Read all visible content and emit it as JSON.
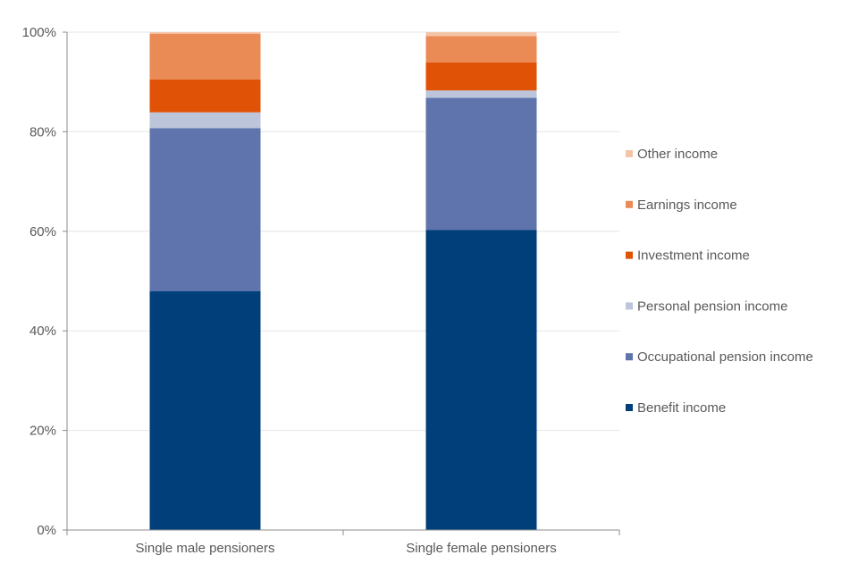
{
  "chart_data": {
    "type": "bar",
    "stacked": true,
    "categories": [
      "Single male pensioners",
      "Single female pensioners"
    ],
    "series": [
      {
        "name": "Benefit income",
        "color": "#003f7a",
        "values": [
          48,
          60.3
        ]
      },
      {
        "name": "Occupational pension income",
        "color": "#5f74ad",
        "values": [
          32.7,
          26.5
        ]
      },
      {
        "name": "Personal pension income",
        "color": "#bcc5d9",
        "values": [
          3.2,
          1.5
        ]
      },
      {
        "name": "Investment income",
        "color": "#e05206",
        "values": [
          6.6,
          5.6
        ]
      },
      {
        "name": "Earnings income",
        "color": "#ea8a54",
        "values": [
          9.2,
          5.3
        ]
      },
      {
        "name": "Other income",
        "color": "#f3c4a6",
        "values": [
          0.3,
          0.8
        ]
      }
    ],
    "yticks": [
      "0%",
      "20%",
      "40%",
      "60%",
      "80%",
      "100%"
    ],
    "ylim": [
      0,
      100
    ],
    "grid": true,
    "legend": "right",
    "legend_order": "reverse"
  }
}
